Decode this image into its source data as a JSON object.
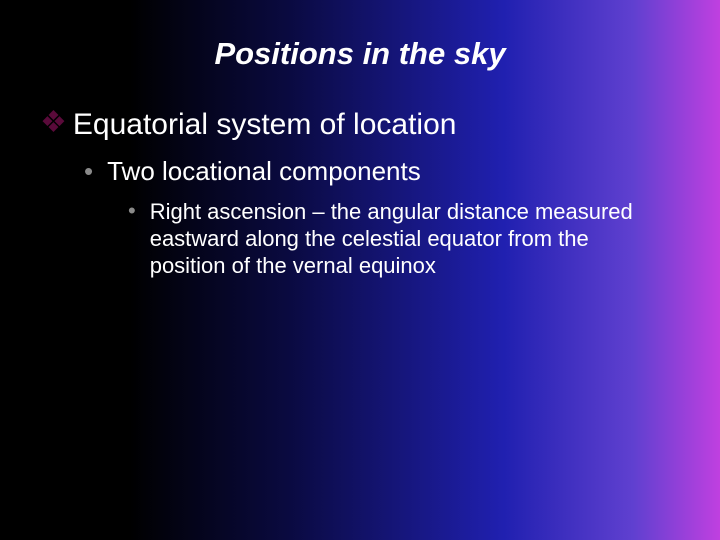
{
  "slide": {
    "title": "Positions in the sky",
    "background_gradient": [
      "#000000",
      "#000000",
      "#0a0a40",
      "#2020b0",
      "#6040d0",
      "#c040e0"
    ],
    "text_color": "#ffffff",
    "title_fontsize": 31,
    "title_style": "bold italic",
    "levels": {
      "level1": {
        "bullet_char": "❖",
        "bullet_color": "#5a0a3a",
        "fontsize": 30,
        "text": "Equatorial system of location"
      },
      "level2": {
        "bullet_char": "•",
        "bullet_color": "#8a8a8a",
        "fontsize": 26,
        "text": "Two locational components"
      },
      "level3": {
        "bullet_char": "•",
        "bullet_color": "#8a8a8a",
        "fontsize": 22,
        "text": "Right ascension – the angular distance measured eastward along the celestial equator from the position of the vernal equinox"
      }
    }
  }
}
